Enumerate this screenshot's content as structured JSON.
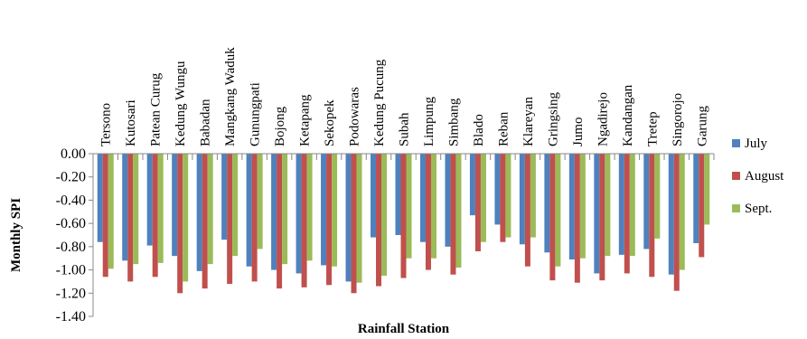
{
  "chart_data": {
    "type": "bar",
    "title": "",
    "xlabel": "Rainfall Station",
    "ylabel": "Monthly SPI",
    "ylim": [
      -1.4,
      0
    ],
    "yticks": [
      0.0,
      -0.2,
      -0.4,
      -0.6,
      -0.8,
      -1.0,
      -1.2,
      -1.4
    ],
    "ytick_labels": [
      "0.00",
      "-0.20",
      "-0.40",
      "-0.60",
      "-0.80",
      "-1.00",
      "-1.20",
      "-1.40"
    ],
    "grid": false,
    "category_labels_position": "top",
    "legend_position": "right",
    "categories": [
      "Tersono",
      "Kutosari",
      "Patean Curug",
      "Kedung Wungu",
      "Babadan",
      "Mangkang Waduk",
      "Gunungpati",
      "Bojong",
      "Ketapang",
      "Sekopek",
      "Podowaras",
      "Kedung Pucung",
      "Subah",
      "Limpung",
      "Simbang",
      "Blado",
      "Reban",
      "Klareyan",
      "Gringsing",
      "Jumo",
      "Ngadirejo",
      "Kandangan",
      "Tretep",
      "Singorojo",
      "Garung"
    ],
    "series": [
      {
        "name": "July",
        "color": "#4f81bd",
        "values": [
          -0.76,
          -0.92,
          -0.79,
          -0.88,
          -1.01,
          -0.74,
          -0.97,
          -1.0,
          -1.03,
          -0.96,
          -1.1,
          -0.72,
          -0.7,
          -0.76,
          -0.8,
          -0.53,
          -0.61,
          -0.78,
          -0.85,
          -0.91,
          -1.03,
          -0.87,
          -0.82,
          -1.04,
          -0.77
        ]
      },
      {
        "name": "August",
        "color": "#c0504d",
        "values": [
          -1.06,
          -1.1,
          -1.06,
          -1.2,
          -1.16,
          -1.12,
          -1.1,
          -1.16,
          -1.15,
          -1.13,
          -1.2,
          -1.14,
          -1.07,
          -1.0,
          -1.04,
          -0.84,
          -0.76,
          -0.97,
          -1.09,
          -1.11,
          -1.09,
          -1.03,
          -1.06,
          -1.18,
          -0.89
        ]
      },
      {
        "name": "Sept.",
        "color": "#9bbb59",
        "values": [
          -0.99,
          -0.95,
          -0.94,
          -1.1,
          -0.95,
          -0.88,
          -0.82,
          -0.95,
          -0.92,
          -0.97,
          -1.11,
          -1.05,
          -0.9,
          -0.9,
          -0.98,
          -0.76,
          -0.72,
          -0.72,
          -0.97,
          -0.9,
          -0.88,
          -0.88,
          -0.73,
          -1.0,
          -0.61
        ]
      }
    ]
  }
}
